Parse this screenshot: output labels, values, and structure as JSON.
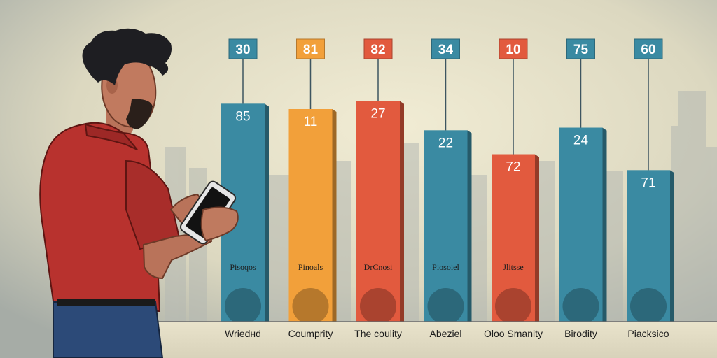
{
  "colors": {
    "teal": "#3a8aa2",
    "orange": "#f2a03a",
    "red": "#e25a3e",
    "shirt": "#b8322e",
    "paper": "#ece6cc",
    "ink": "#1c1c1c"
  },
  "chart_data": {
    "type": "bar",
    "title": "",
    "xlabel": "",
    "ylabel": "",
    "ylim": [
      0,
      100
    ],
    "grid": false,
    "categories": [
      "Wriedнd",
      "Coumprity",
      "The coulity",
      "Abeziel",
      "Oloo Smanity",
      "Birodity",
      "Piacksico"
    ],
    "bar_labels": [
      "85",
      "11",
      "27",
      "22",
      "72",
      "24",
      "71"
    ],
    "callout_values": [
      30,
      81,
      82,
      34,
      10,
      75,
      60
    ],
    "bar_heights": [
      82,
      80,
      83,
      72,
      63,
      73,
      57
    ],
    "bar_colors": [
      "#3a8aa2",
      "#f2a03a",
      "#e25a3e",
      "#3a8aa2",
      "#e25a3e",
      "#3a8aa2",
      "#3a8aa2"
    ],
    "inner_texts": [
      "Pɨsoqos",
      "Pɨnoals",
      "DrCnosɨ",
      "Pɨosoiel",
      "Jlitsse",
      "",
      ""
    ]
  }
}
